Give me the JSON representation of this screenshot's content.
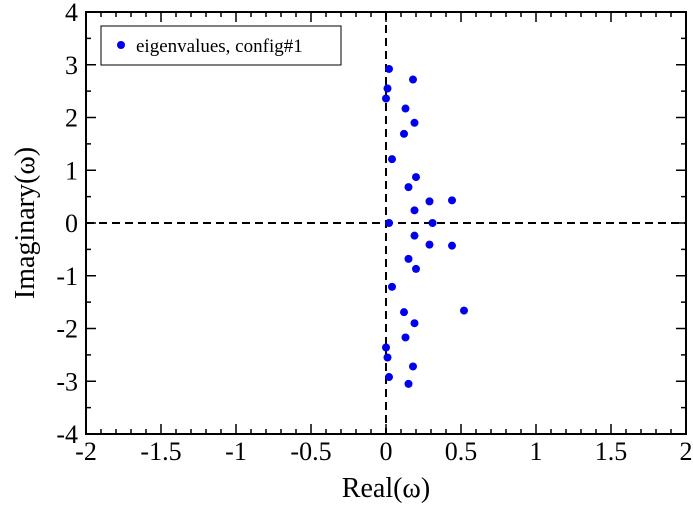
{
  "chart_data": {
    "type": "scatter",
    "xlabel": "Real(ω)",
    "ylabel": "Imaginary(ω)",
    "xlim": [
      -2,
      2
    ],
    "ylim": [
      -4,
      4
    ],
    "x_ticks": [
      "-2",
      "-1.5",
      "-1",
      "-0.5",
      "0",
      "0.5",
      "1",
      "1.5",
      "2"
    ],
    "y_ticks": [
      "-4",
      "-3",
      "-2",
      "-1",
      "0",
      "1",
      "2",
      "3",
      "4"
    ],
    "grid": false,
    "reference_lines": [
      "x=0 dashed",
      "y=0 dashed"
    ],
    "legend": {
      "position": "top-left",
      "entries": [
        "eigenvalues, config#1"
      ]
    },
    "series": [
      {
        "name": "eigenvalues, config#1",
        "color": "#0000ee",
        "marker": "circle",
        "points": [
          [
            0.02,
            2.92
          ],
          [
            0.18,
            2.72
          ],
          [
            0.01,
            2.55
          ],
          [
            0.0,
            2.36
          ],
          [
            0.13,
            2.17
          ],
          [
            0.19,
            1.9
          ],
          [
            0.12,
            1.69
          ],
          [
            0.04,
            1.21
          ],
          [
            0.2,
            0.87
          ],
          [
            0.15,
            0.68
          ],
          [
            0.29,
            0.41
          ],
          [
            0.44,
            0.43
          ],
          [
            0.19,
            0.24
          ],
          [
            0.02,
            0.0
          ],
          [
            0.31,
            0.0
          ],
          [
            0.19,
            -0.24
          ],
          [
            0.29,
            -0.41
          ],
          [
            0.44,
            -0.43
          ],
          [
            0.15,
            -0.68
          ],
          [
            0.2,
            -0.87
          ],
          [
            0.04,
            -1.21
          ],
          [
            0.12,
            -1.69
          ],
          [
            0.52,
            -1.66
          ],
          [
            0.19,
            -1.9
          ],
          [
            0.13,
            -2.17
          ],
          [
            0.0,
            -2.36
          ],
          [
            0.01,
            -2.55
          ],
          [
            0.18,
            -2.72
          ],
          [
            0.02,
            -2.92
          ],
          [
            0.15,
            -3.05
          ]
        ]
      }
    ]
  }
}
